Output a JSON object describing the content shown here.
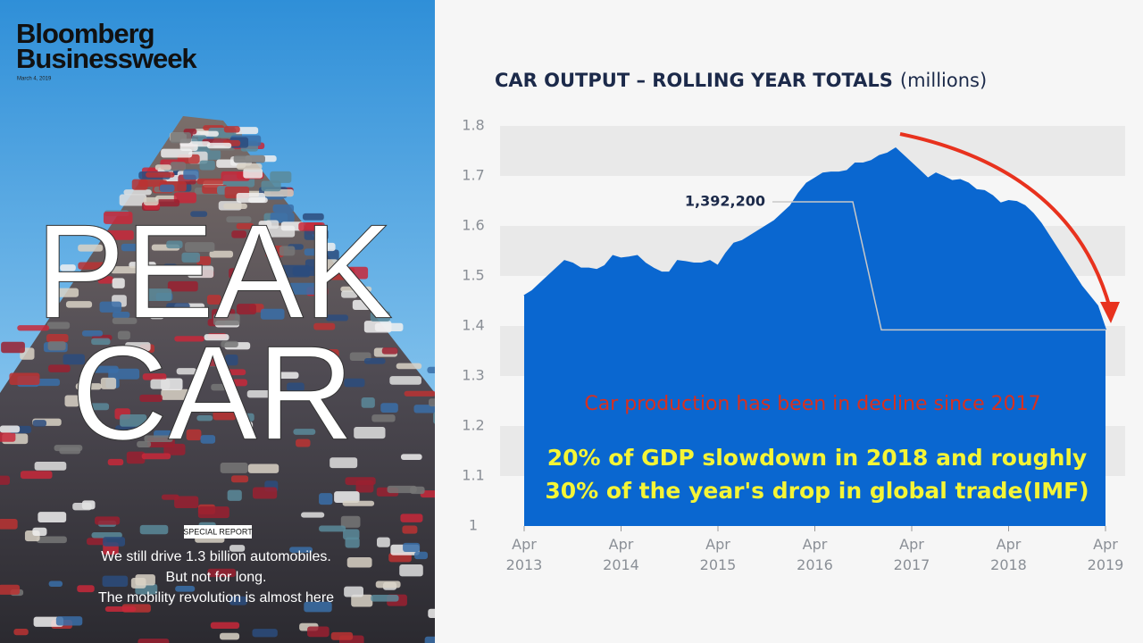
{
  "cover": {
    "masthead": [
      "Bloomberg",
      "Businessweek"
    ],
    "date": "March 4, 2019",
    "headline": [
      "PEAK",
      "CAR"
    ],
    "section": "SPECIAL REPORT",
    "lines": [
      "We still drive 1.3 billion automobiles.",
      "But not for long.",
      "The mobility revolution is almost here"
    ]
  },
  "chart_data": {
    "type": "area",
    "title": "CAR OUTPUT – ROLLING YEAR TOTALS",
    "subtitle": "(millions)",
    "color": "#0a67d0",
    "x": [
      "2013-04",
      "2013-05",
      "2013-06",
      "2013-07",
      "2013-08",
      "2013-09",
      "2013-10",
      "2013-11",
      "2013-12",
      "2014-01",
      "2014-02",
      "2014-03",
      "2014-04",
      "2014-05",
      "2014-06",
      "2014-07",
      "2014-08",
      "2014-09",
      "2014-10",
      "2014-11",
      "2014-12",
      "2015-01",
      "2015-02",
      "2015-03",
      "2015-04",
      "2015-05",
      "2015-06",
      "2015-07",
      "2015-08",
      "2015-09",
      "2015-10",
      "2015-11",
      "2015-12",
      "2016-01",
      "2016-02",
      "2016-03",
      "2016-04",
      "2016-05",
      "2016-06",
      "2016-07",
      "2016-08",
      "2016-09",
      "2016-10",
      "2016-11",
      "2016-12",
      "2017-01",
      "2017-02",
      "2017-03",
      "2017-04",
      "2017-05",
      "2017-06",
      "2017-07",
      "2017-08",
      "2017-09",
      "2017-10",
      "2017-11",
      "2017-12",
      "2018-01",
      "2018-02",
      "2018-03",
      "2018-04",
      "2018-05",
      "2018-06",
      "2018-07",
      "2018-08",
      "2018-09",
      "2018-10",
      "2018-11",
      "2018-12",
      "2019-01",
      "2019-02",
      "2019-03",
      "2019-04"
    ],
    "values": [
      1.46,
      1.47,
      1.485,
      1.5,
      1.515,
      1.53,
      1.525,
      1.515,
      1.515,
      1.512,
      1.52,
      1.54,
      1.535,
      1.537,
      1.54,
      1.525,
      1.515,
      1.507,
      1.507,
      1.53,
      1.528,
      1.525,
      1.525,
      1.53,
      1.52,
      1.545,
      1.565,
      1.57,
      1.58,
      1.59,
      1.6,
      1.61,
      1.625,
      1.64,
      1.665,
      1.685,
      1.695,
      1.705,
      1.707,
      1.707,
      1.71,
      1.725,
      1.725,
      1.73,
      1.74,
      1.745,
      1.755,
      1.74,
      1.725,
      1.71,
      1.695,
      1.705,
      1.698,
      1.69,
      1.692,
      1.685,
      1.672,
      1.67,
      1.66,
      1.645,
      1.65,
      1.648,
      1.64,
      1.625,
      1.605,
      1.58,
      1.555,
      1.53,
      1.505,
      1.48,
      1.46,
      1.44,
      1.3922
    ],
    "xlim": [
      "2013-04",
      "2019-04"
    ],
    "xticks": [
      {
        "value": "2013-04",
        "label": "Apr 2013"
      },
      {
        "value": "2014-04",
        "label": "Apr 2014"
      },
      {
        "value": "2015-04",
        "label": "Apr 2015"
      },
      {
        "value": "2016-04",
        "label": "Apr 2016"
      },
      {
        "value": "2017-04",
        "label": "Apr 2017"
      },
      {
        "value": "2018-04",
        "label": "Apr 2018"
      },
      {
        "value": "2019-04",
        "label": "Apr 2019"
      }
    ],
    "ylim": [
      1,
      1.8
    ],
    "yticks": [
      1,
      1.1,
      1.2,
      1.3,
      1.4,
      1.5,
      1.6,
      1.7,
      1.8
    ],
    "grid": "bands",
    "annotation": "1,392,200",
    "notes": [
      "Car production has been in decline since 2017",
      "20% of GDP slowdown in 2018 and roughly",
      "30% of the year's drop in global trade(IMF)"
    ]
  }
}
